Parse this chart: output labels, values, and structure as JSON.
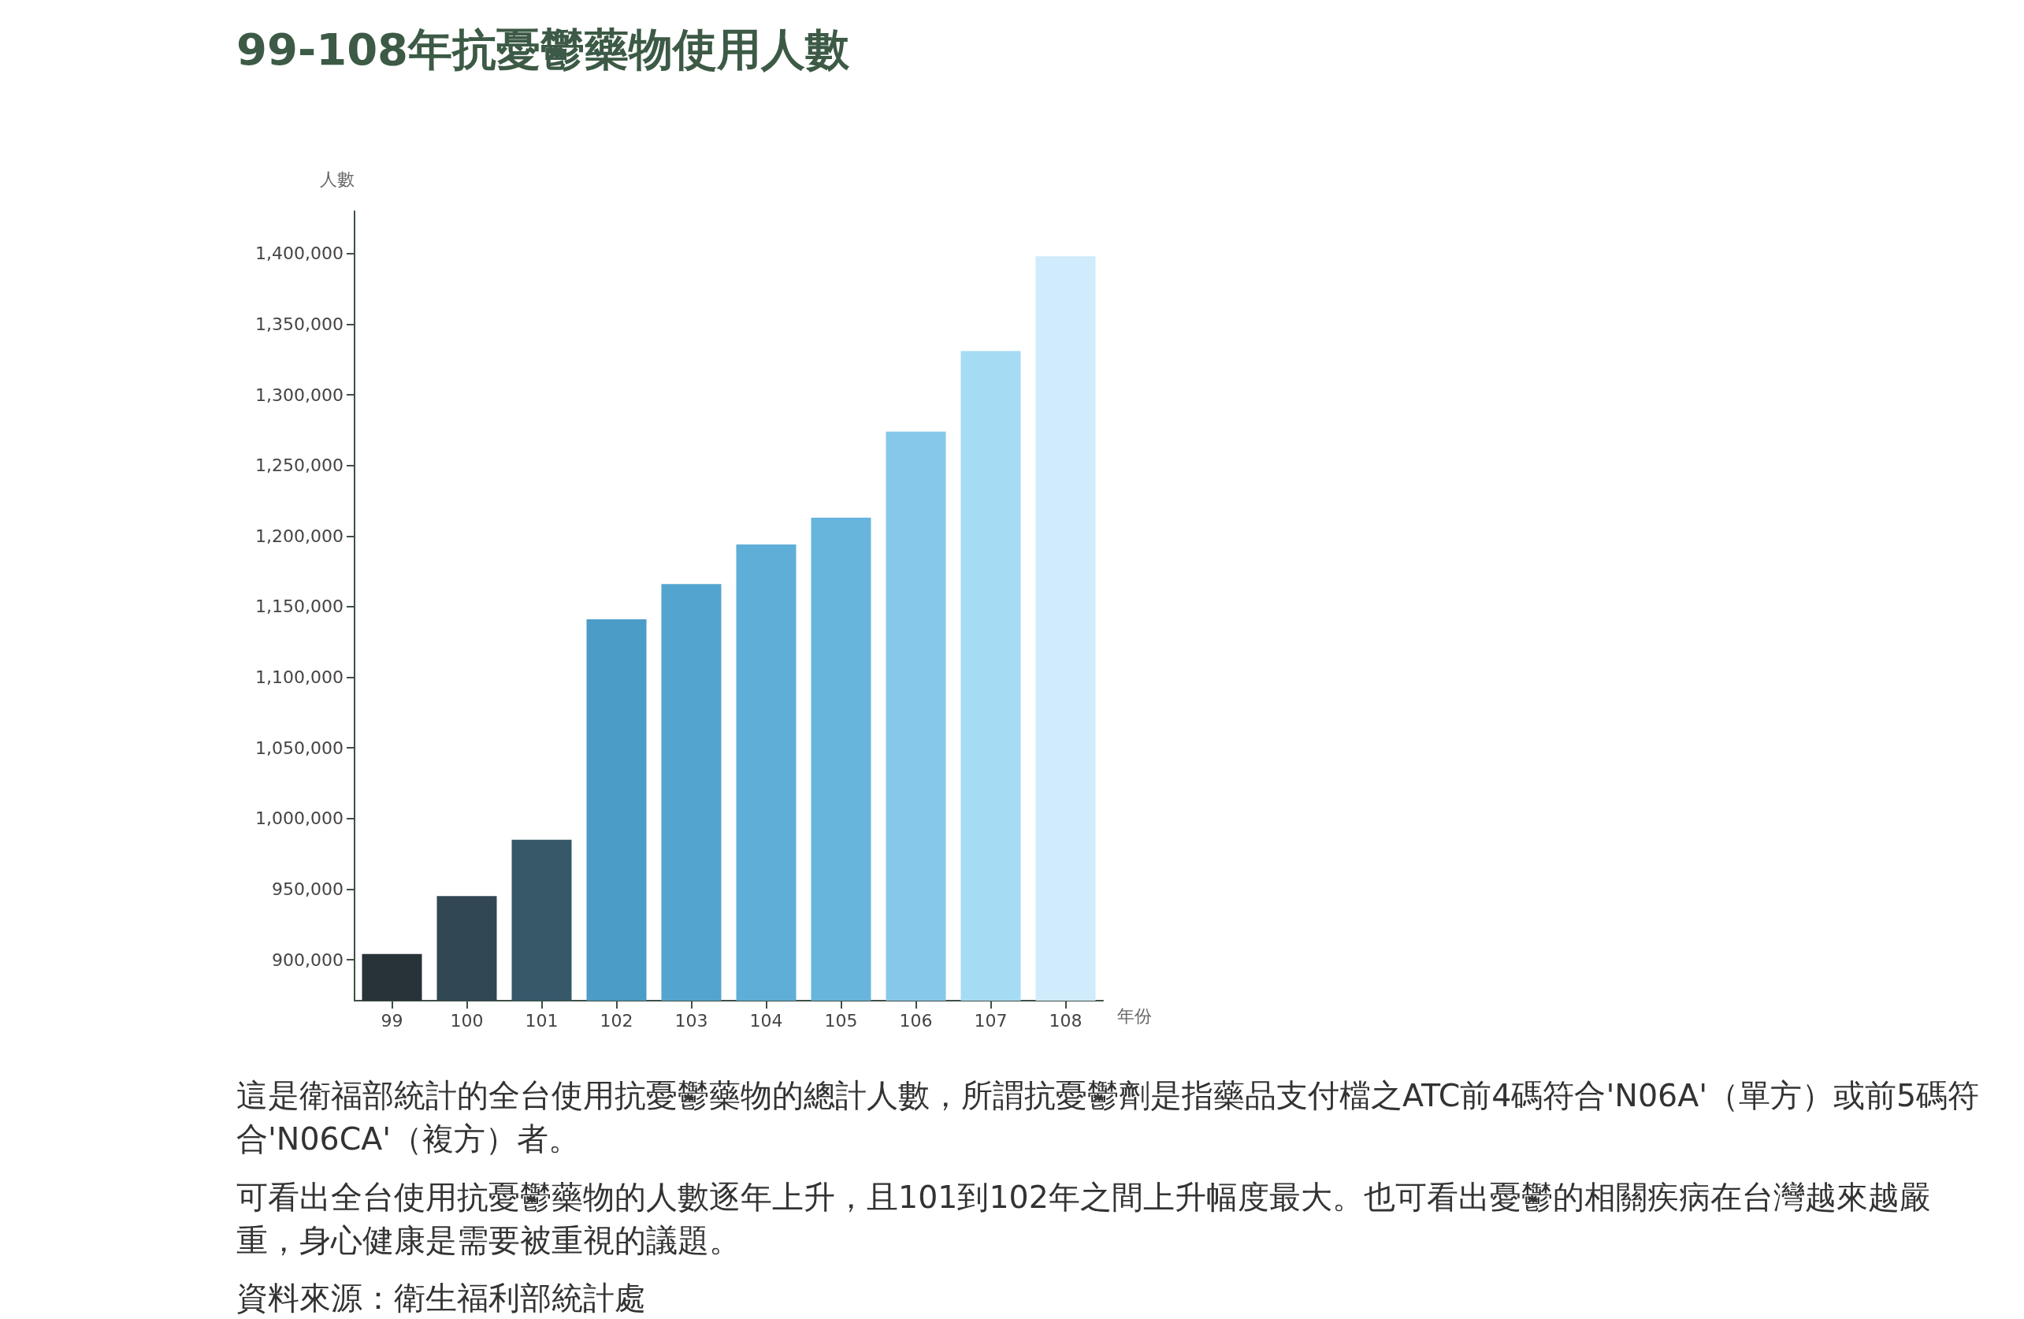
{
  "chart_data": {
    "type": "bar",
    "title": "99-108年抗憂鬱藥物使用人數",
    "ylabel": "人數",
    "xlabel": "年份",
    "categories": [
      "99",
      "100",
      "101",
      "102",
      "103",
      "104",
      "105",
      "106",
      "107",
      "108"
    ],
    "values": [
      904000,
      945000,
      985000,
      1141000,
      1166000,
      1194000,
      1213000,
      1274000,
      1331000,
      1398000
    ],
    "colors": [
      "#283339",
      "#314753",
      "#365868",
      "#4b9cc7",
      "#53a5d0",
      "#5eaed8",
      "#67b5dd",
      "#86c8ea",
      "#a6dbf4",
      "#d0ebfb"
    ],
    "ylim": [
      871000,
      1430000
    ],
    "yticks": [
      {
        "value": 900000,
        "label": "900,000"
      },
      {
        "value": 950000,
        "label": "950,000"
      },
      {
        "value": 1000000,
        "label": "1,000,000"
      },
      {
        "value": 1050000,
        "label": "1,050,000"
      },
      {
        "value": 1100000,
        "label": "1,100,000"
      },
      {
        "value": 1150000,
        "label": "1,150,000"
      },
      {
        "value": 1200000,
        "label": "1,200,000"
      },
      {
        "value": 1250000,
        "label": "1,250,000"
      },
      {
        "value": 1300000,
        "label": "1,300,000"
      },
      {
        "value": 1350000,
        "label": "1,350,000"
      },
      {
        "value": 1400000,
        "label": "1,400,000"
      }
    ],
    "grid": false,
    "annotations": [
      "這是衛福部統計的全台使用抗憂鬱藥物的總計人數，所謂抗憂鬱劑是指藥品支付檔之ATC前4碼符合'N06A'（單方）或前5碼符合'N06CA'（複方）者。",
      "可看出全台使用抗憂鬱藥物的人數逐年上升，且101到102年之間上升幅度最大。也可看出憂鬱的相關疾病在台灣越來越嚴重，身心健康是需要被重視的議題。",
      "資料來源：衛生福利部統計處"
    ]
  }
}
